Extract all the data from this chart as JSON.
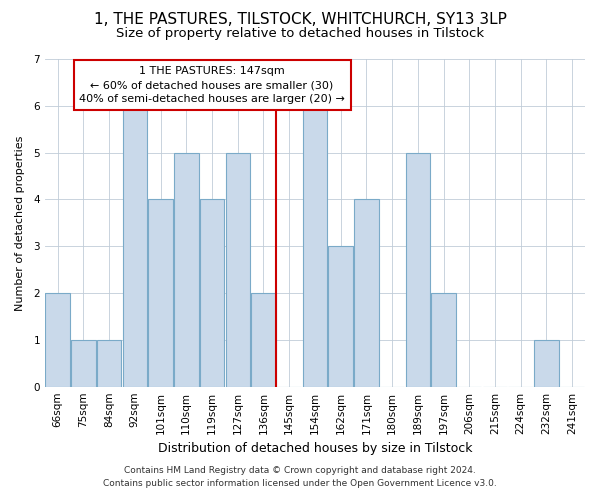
{
  "title1": "1, THE PASTURES, TILSTOCK, WHITCHURCH, SY13 3LP",
  "title2": "Size of property relative to detached houses in Tilstock",
  "xlabel": "Distribution of detached houses by size in Tilstock",
  "ylabel": "Number of detached properties",
  "categories": [
    "66sqm",
    "75sqm",
    "84sqm",
    "92sqm",
    "101sqm",
    "110sqm",
    "119sqm",
    "127sqm",
    "136sqm",
    "145sqm",
    "154sqm",
    "162sqm",
    "171sqm",
    "180sqm",
    "189sqm",
    "197sqm",
    "206sqm",
    "215sqm",
    "224sqm",
    "232sqm",
    "241sqm"
  ],
  "values": [
    2,
    1,
    1,
    6,
    4,
    5,
    4,
    5,
    2,
    0,
    6,
    3,
    4,
    0,
    5,
    2,
    0,
    0,
    0,
    1,
    0
  ],
  "bar_color": "#c9d9ea",
  "bar_edgecolor": "#7aaac8",
  "subject_line_idx": 9,
  "subject_label": "1 THE PASTURES: 147sqm",
  "annot_line1": "← 60% of detached houses are smaller (30)",
  "annot_line2": "40% of semi-detached houses are larger (20) →",
  "vline_color": "#cc0000",
  "ylim": [
    0,
    7
  ],
  "yticks": [
    0,
    1,
    2,
    3,
    4,
    5,
    6,
    7
  ],
  "footer1": "Contains HM Land Registry data © Crown copyright and database right 2024.",
  "footer2": "Contains public sector information licensed under the Open Government Licence v3.0.",
  "bg_color": "#ffffff",
  "plot_bg_color": "#ffffff",
  "grid_color": "#c0ccd8",
  "title1_fontsize": 11,
  "title2_fontsize": 9.5,
  "xlabel_fontsize": 9,
  "ylabel_fontsize": 8,
  "tick_fontsize": 7.5,
  "annot_fontsize": 8,
  "footer_fontsize": 6.5
}
